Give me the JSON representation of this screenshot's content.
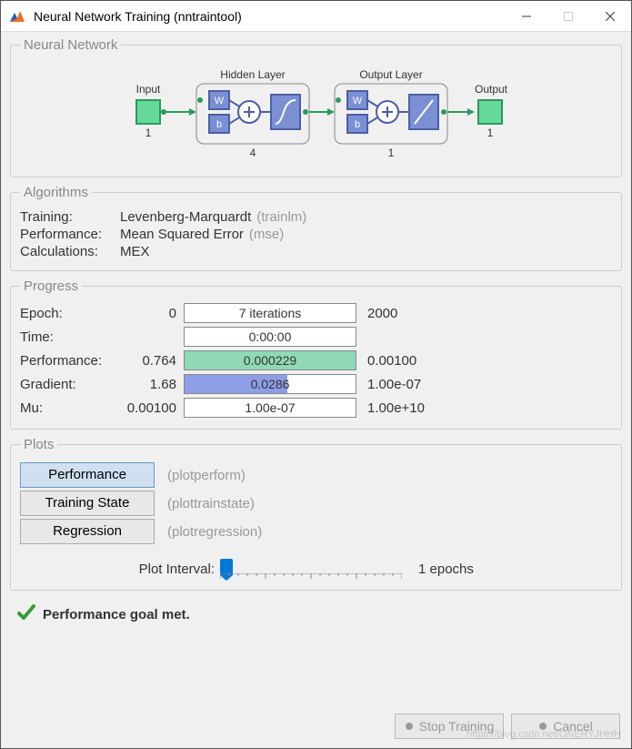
{
  "window": {
    "title": "Neural Network Training (nntraintool)"
  },
  "sections": {
    "nn": {
      "legend": "Neural Network",
      "input_label": "Input",
      "hidden_label": "Hidden Layer",
      "output_label": "Output Layer",
      "out_label": "Output",
      "input_n": "1",
      "hidden_n": "4",
      "outputlayer_n": "1",
      "output_n": "1"
    },
    "alg": {
      "legend": "Algorithms",
      "rows": [
        {
          "label": "Training:",
          "value": "Levenberg-Marquardt",
          "fn": "(trainlm)"
        },
        {
          "label": "Performance:",
          "value": "Mean Squared Error",
          "fn": "(mse)"
        },
        {
          "label": "Calculations:",
          "value": "MEX",
          "fn": ""
        }
      ]
    },
    "prog": {
      "legend": "Progress",
      "rows": [
        {
          "label": "Epoch:",
          "left": "0",
          "text": "7 iterations",
          "right": "2000",
          "fill_pct": 0,
          "fill_color": "#8fd9b6"
        },
        {
          "label": "Time:",
          "left": "",
          "text": "0:00:00",
          "right": "",
          "fill_pct": 0,
          "fill_color": "#8fd9b6"
        },
        {
          "label": "Performance:",
          "left": "0.764",
          "text": "0.000229",
          "right": "0.00100",
          "fill_pct": 100,
          "fill_color": "#8fd9b6"
        },
        {
          "label": "Gradient:",
          "left": "1.68",
          "text": "0.0286",
          "right": "1.00e-07",
          "fill_pct": 60,
          "fill_color": "#8d9ee6"
        },
        {
          "label": "Mu:",
          "left": "0.00100",
          "text": "1.00e-07",
          "right": "1.00e+10",
          "fill_pct": 0,
          "fill_color": "#8d9ee6"
        }
      ]
    },
    "plots": {
      "legend": "Plots",
      "buttons": [
        {
          "label": "Performance",
          "fn": "(plotperform)",
          "selected": true
        },
        {
          "label": "Training State",
          "fn": "(plottrainstate)",
          "selected": false
        },
        {
          "label": "Regression",
          "fn": "(plotregression)",
          "selected": false
        }
      ],
      "interval_label": "Plot Interval:",
      "interval_value": "1 epochs"
    }
  },
  "status": {
    "text": "Performance goal met."
  },
  "footer": {
    "stop": "Stop Training",
    "cancel": "Cancel"
  },
  "colors": {
    "node_green": "#67d99a",
    "node_blue": "#7a8fd4",
    "border_blue": "#4a5fa4",
    "border_green": "#2a9a5a"
  },
  "watermark": "https://blog.csdn.net/ONERYJHHH"
}
